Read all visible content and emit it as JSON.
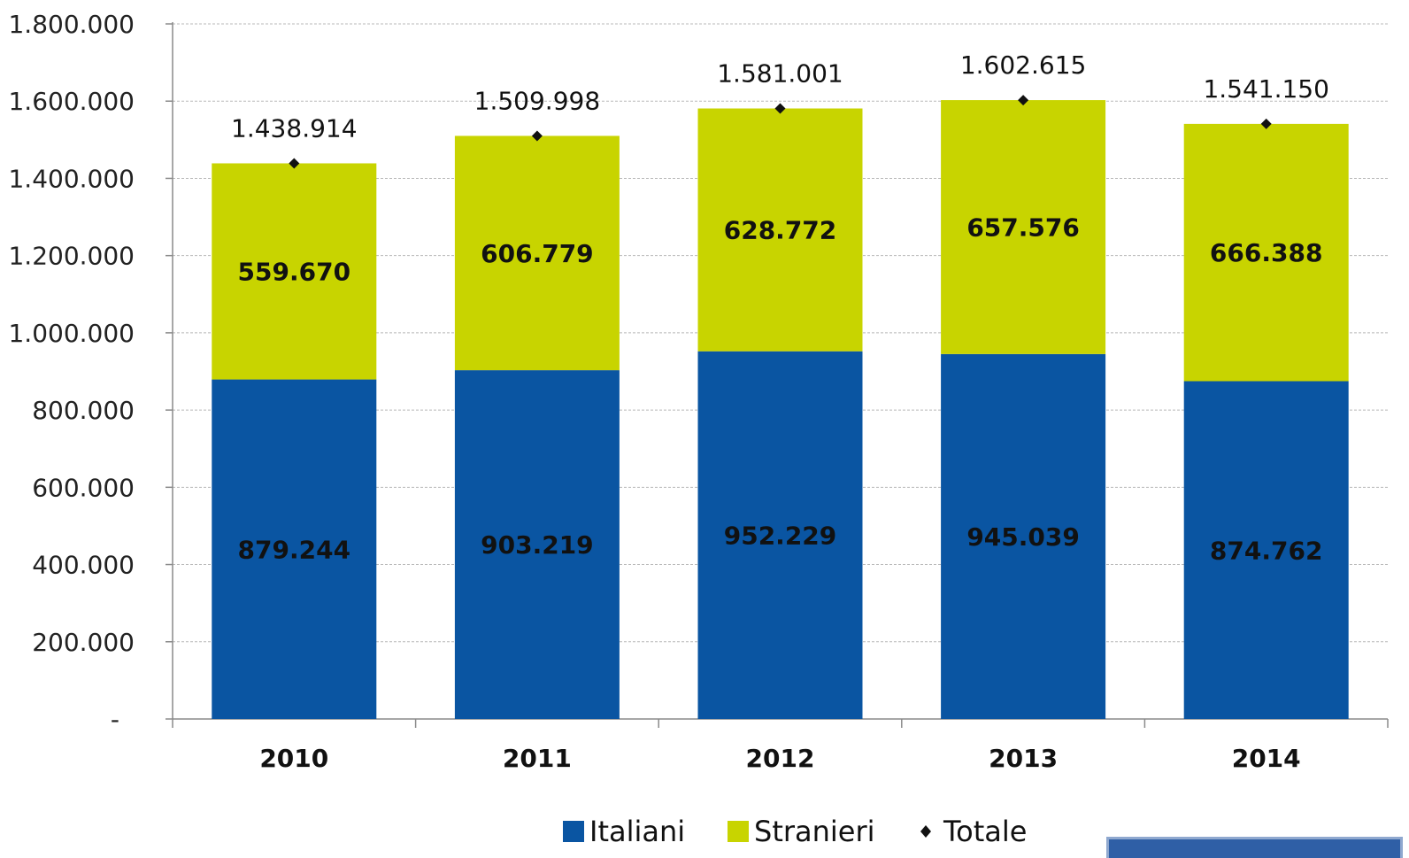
{
  "chart_data": {
    "type": "bar",
    "stacked": true,
    "title": "",
    "xlabel": "",
    "ylabel": "",
    "ylim": [
      0,
      1800000
    ],
    "y_ticks": [
      {
        "value": 0,
        "label": "-"
      },
      {
        "value": 200000,
        "label": "200.000"
      },
      {
        "value": 400000,
        "label": "400.000"
      },
      {
        "value": 600000,
        "label": "600.000"
      },
      {
        "value": 800000,
        "label": "800.000"
      },
      {
        "value": 1000000,
        "label": "1.000.000"
      },
      {
        "value": 1200000,
        "label": "1.200.000"
      },
      {
        "value": 1400000,
        "label": "1.400.000"
      },
      {
        "value": 1600000,
        "label": "1.600.000"
      },
      {
        "value": 1800000,
        "label": "1.800.000"
      }
    ],
    "grid": true,
    "legend_position": "bottom",
    "categories": [
      "2010",
      "2011",
      "2012",
      "2013",
      "2014"
    ],
    "series": [
      {
        "name": "Italiani",
        "color": "#0a55a2",
        "values": [
          879244,
          903219,
          952229,
          945039,
          874762
        ],
        "labels": [
          "879.244",
          "903.219",
          "952.229",
          "945.039",
          "874.762"
        ]
      },
      {
        "name": "Stranieri",
        "color": "#c8d400",
        "values": [
          559670,
          606779,
          628772,
          657576,
          666388
        ],
        "labels": [
          "559.670",
          "606.779",
          "628.772",
          "657.576",
          "666.388"
        ]
      }
    ],
    "totals": {
      "name": "Totale",
      "marker": "diamond",
      "values": [
        1438914,
        1509998,
        1581001,
        1602615,
        1541150
      ],
      "labels": [
        "1.438.914",
        "1.509.998",
        "1.581.001",
        "1.602.615",
        "1.541.150"
      ]
    }
  },
  "legend": {
    "items": [
      "Italiani",
      "Stranieri",
      "Totale"
    ]
  }
}
